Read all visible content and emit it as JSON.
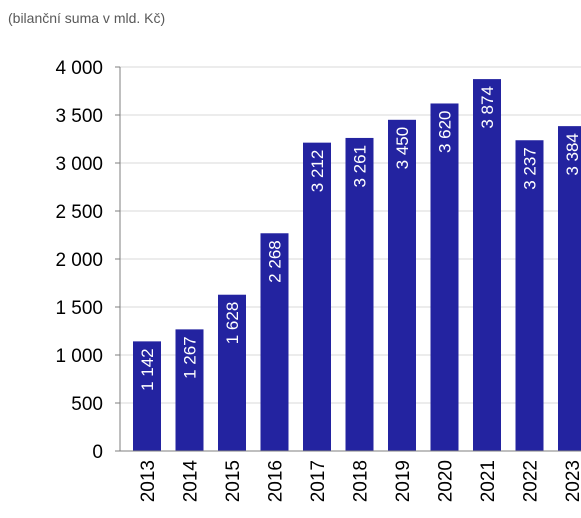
{
  "chart_data": {
    "type": "bar",
    "subtitle": "(bilanční suma v mld. Kč)",
    "categories": [
      "2013",
      "2014",
      "2015",
      "2016",
      "2017",
      "2018",
      "2019",
      "2020",
      "2021",
      "2022",
      "2023"
    ],
    "values": [
      1142,
      1267,
      1628,
      2268,
      3212,
      3261,
      3450,
      3620,
      3874,
      3237,
      3384
    ],
    "value_labels": [
      "1 142",
      "1 267",
      "1 628",
      "2 268",
      "3 212",
      "3 261",
      "3 450",
      "3 620",
      "3 874",
      "3 237",
      "3 384"
    ],
    "ylim": [
      0,
      4000
    ],
    "yticks": [
      0,
      500,
      1000,
      1500,
      2000,
      2500,
      3000,
      3500,
      4000
    ],
    "ytick_labels": [
      "0",
      "500",
      "1 000",
      "1 500",
      "2 000",
      "2 500",
      "3 000",
      "3 500",
      "4 000"
    ],
    "grid": true,
    "bar_color": "#2323a0",
    "grid_color": "#d9d9d9",
    "axis_color": "#7f7f7f"
  }
}
